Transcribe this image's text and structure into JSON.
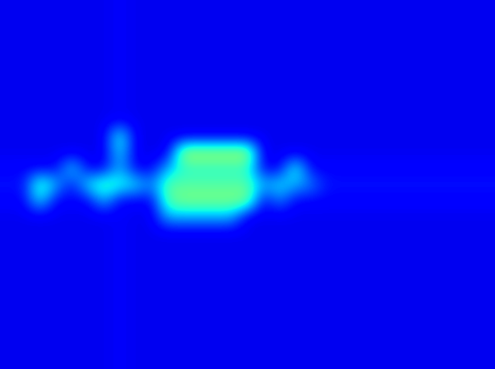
{
  "chart_data": {
    "type": "heatmap",
    "tick_labels": false,
    "color_range": [
      0,
      1
    ],
    "cells": [
      [
        0.1,
        0.1,
        0.1,
        0.1,
        0.1,
        0.1,
        0.1,
        0.11,
        0.1,
        0.1,
        0.1,
        0.1,
        0.1,
        0.1,
        0.1,
        0.1,
        0.1,
        0.1,
        0.1,
        0.1,
        0.1,
        0.1,
        0.1,
        0.1,
        0.1,
        0.1,
        0.1,
        0.1,
        0.1,
        0.1,
        0.1
      ],
      [
        0.1,
        0.1,
        0.1,
        0.1,
        0.1,
        0.1,
        0.1,
        0.11,
        0.1,
        0.1,
        0.1,
        0.1,
        0.1,
        0.1,
        0.1,
        0.1,
        0.1,
        0.1,
        0.1,
        0.1,
        0.1,
        0.1,
        0.1,
        0.1,
        0.1,
        0.1,
        0.1,
        0.1,
        0.1,
        0.1,
        0.1
      ],
      [
        0.1,
        0.1,
        0.1,
        0.1,
        0.1,
        0.1,
        0.1,
        0.11,
        0.1,
        0.1,
        0.1,
        0.1,
        0.1,
        0.1,
        0.1,
        0.1,
        0.1,
        0.1,
        0.1,
        0.1,
        0.1,
        0.1,
        0.1,
        0.1,
        0.1,
        0.1,
        0.1,
        0.1,
        0.1,
        0.1,
        0.1
      ],
      [
        0.1,
        0.1,
        0.1,
        0.1,
        0.1,
        0.1,
        0.1,
        0.11,
        0.1,
        0.1,
        0.1,
        0.1,
        0.1,
        0.1,
        0.1,
        0.1,
        0.1,
        0.1,
        0.1,
        0.1,
        0.1,
        0.1,
        0.1,
        0.1,
        0.1,
        0.1,
        0.1,
        0.1,
        0.1,
        0.1,
        0.1
      ],
      [
        0.1,
        0.1,
        0.1,
        0.1,
        0.1,
        0.1,
        0.1,
        0.11,
        0.1,
        0.1,
        0.1,
        0.1,
        0.1,
        0.1,
        0.1,
        0.1,
        0.1,
        0.1,
        0.1,
        0.1,
        0.1,
        0.1,
        0.1,
        0.1,
        0.1,
        0.1,
        0.1,
        0.1,
        0.1,
        0.1,
        0.1
      ],
      [
        0.1,
        0.1,
        0.1,
        0.1,
        0.1,
        0.1,
        0.1,
        0.11,
        0.1,
        0.1,
        0.1,
        0.1,
        0.1,
        0.1,
        0.1,
        0.1,
        0.1,
        0.1,
        0.1,
        0.1,
        0.1,
        0.1,
        0.1,
        0.1,
        0.1,
        0.1,
        0.1,
        0.1,
        0.1,
        0.1,
        0.1
      ],
      [
        0.1,
        0.1,
        0.1,
        0.1,
        0.1,
        0.1,
        0.1,
        0.11,
        0.1,
        0.1,
        0.1,
        0.1,
        0.1,
        0.1,
        0.1,
        0.1,
        0.1,
        0.1,
        0.1,
        0.1,
        0.1,
        0.1,
        0.1,
        0.1,
        0.1,
        0.1,
        0.1,
        0.1,
        0.1,
        0.1,
        0.1
      ],
      [
        0.1,
        0.1,
        0.1,
        0.1,
        0.1,
        0.1,
        0.1,
        0.11,
        0.1,
        0.1,
        0.1,
        0.1,
        0.1,
        0.1,
        0.1,
        0.1,
        0.1,
        0.1,
        0.1,
        0.1,
        0.1,
        0.1,
        0.1,
        0.1,
        0.1,
        0.1,
        0.1,
        0.1,
        0.1,
        0.1,
        0.1
      ],
      [
        0.1,
        0.1,
        0.1,
        0.1,
        0.1,
        0.1,
        0.1,
        0.4,
        0.1,
        0.1,
        0.1,
        0.1,
        0.1,
        0.1,
        0.1,
        0.1,
        0.1,
        0.1,
        0.1,
        0.1,
        0.1,
        0.1,
        0.1,
        0.1,
        0.1,
        0.1,
        0.1,
        0.1,
        0.1,
        0.1,
        0.1
      ],
      [
        0.1,
        0.1,
        0.1,
        0.1,
        0.1,
        0.1,
        0.1,
        0.35,
        0.1,
        0.1,
        0.1,
        0.55,
        0.55,
        0.55,
        0.55,
        0.55,
        0.1,
        0.1,
        0.1,
        0.1,
        0.1,
        0.1,
        0.1,
        0.1,
        0.1,
        0.1,
        0.1,
        0.1,
        0.1,
        0.1,
        0.1
      ],
      [
        0.12,
        0.12,
        0.12,
        0.12,
        0.35,
        0.12,
        0.12,
        0.3,
        0.12,
        0.12,
        0.3,
        0.4,
        0.4,
        0.4,
        0.4,
        0.4,
        0.12,
        0.12,
        0.4,
        0.12,
        0.12,
        0.12,
        0.12,
        0.12,
        0.12,
        0.12,
        0.12,
        0.12,
        0.12,
        0.12,
        0.12
      ],
      [
        0.14,
        0.14,
        0.45,
        0.3,
        0.14,
        0.35,
        0.45,
        0.4,
        0.35,
        0.25,
        0.45,
        0.45,
        0.45,
        0.45,
        0.45,
        0.45,
        0.3,
        0.35,
        0.3,
        0.25,
        0.14,
        0.14,
        0.14,
        0.14,
        0.14,
        0.14,
        0.14,
        0.14,
        0.14,
        0.14,
        0.14
      ],
      [
        0.12,
        0.12,
        0.35,
        0.12,
        0.12,
        0.12,
        0.3,
        0.12,
        0.12,
        0.12,
        0.45,
        0.5,
        0.5,
        0.5,
        0.5,
        0.5,
        0.12,
        0.25,
        0.12,
        0.12,
        0.12,
        0.12,
        0.12,
        0.12,
        0.12,
        0.12,
        0.12,
        0.12,
        0.12,
        0.12,
        0.12
      ],
      [
        0.1,
        0.1,
        0.1,
        0.1,
        0.1,
        0.1,
        0.1,
        0.11,
        0.1,
        0.1,
        0.3,
        0.3,
        0.3,
        0.3,
        0.3,
        0.1,
        0.1,
        0.1,
        0.1,
        0.1,
        0.1,
        0.1,
        0.1,
        0.1,
        0.1,
        0.1,
        0.1,
        0.1,
        0.1,
        0.1,
        0.1
      ],
      [
        0.1,
        0.1,
        0.1,
        0.1,
        0.1,
        0.1,
        0.1,
        0.11,
        0.1,
        0.1,
        0.1,
        0.1,
        0.1,
        0.1,
        0.1,
        0.1,
        0.1,
        0.1,
        0.1,
        0.1,
        0.1,
        0.1,
        0.1,
        0.1,
        0.1,
        0.1,
        0.1,
        0.1,
        0.1,
        0.1,
        0.1
      ],
      [
        0.1,
        0.1,
        0.1,
        0.1,
        0.1,
        0.1,
        0.1,
        0.11,
        0.1,
        0.1,
        0.1,
        0.1,
        0.1,
        0.1,
        0.1,
        0.1,
        0.1,
        0.1,
        0.1,
        0.1,
        0.1,
        0.1,
        0.1,
        0.1,
        0.1,
        0.1,
        0.1,
        0.1,
        0.1,
        0.1,
        0.1
      ],
      [
        0.1,
        0.1,
        0.1,
        0.1,
        0.1,
        0.1,
        0.1,
        0.11,
        0.1,
        0.1,
        0.1,
        0.1,
        0.1,
        0.1,
        0.1,
        0.1,
        0.1,
        0.1,
        0.1,
        0.1,
        0.1,
        0.1,
        0.1,
        0.1,
        0.1,
        0.1,
        0.1,
        0.1,
        0.1,
        0.1,
        0.1
      ],
      [
        0.1,
        0.1,
        0.1,
        0.1,
        0.1,
        0.1,
        0.1,
        0.11,
        0.1,
        0.1,
        0.1,
        0.1,
        0.1,
        0.1,
        0.1,
        0.1,
        0.1,
        0.1,
        0.1,
        0.1,
        0.1,
        0.1,
        0.1,
        0.1,
        0.1,
        0.1,
        0.1,
        0.1,
        0.1,
        0.1,
        0.1
      ],
      [
        0.1,
        0.1,
        0.1,
        0.1,
        0.1,
        0.1,
        0.1,
        0.11,
        0.1,
        0.1,
        0.1,
        0.1,
        0.1,
        0.1,
        0.1,
        0.1,
        0.1,
        0.1,
        0.1,
        0.1,
        0.1,
        0.1,
        0.1,
        0.1,
        0.1,
        0.1,
        0.1,
        0.1,
        0.1,
        0.1,
        0.1
      ],
      [
        0.1,
        0.1,
        0.1,
        0.1,
        0.1,
        0.1,
        0.1,
        0.11,
        0.1,
        0.1,
        0.1,
        0.1,
        0.1,
        0.1,
        0.1,
        0.1,
        0.1,
        0.1,
        0.1,
        0.1,
        0.1,
        0.1,
        0.1,
        0.1,
        0.1,
        0.1,
        0.1,
        0.1,
        0.1,
        0.1,
        0.1
      ],
      [
        0.1,
        0.1,
        0.1,
        0.1,
        0.1,
        0.1,
        0.1,
        0.11,
        0.1,
        0.1,
        0.1,
        0.1,
        0.1,
        0.1,
        0.1,
        0.1,
        0.1,
        0.1,
        0.1,
        0.1,
        0.1,
        0.1,
        0.1,
        0.1,
        0.1,
        0.1,
        0.1,
        0.1,
        0.1,
        0.1,
        0.1
      ],
      [
        0.1,
        0.1,
        0.1,
        0.1,
        0.1,
        0.1,
        0.1,
        0.11,
        0.1,
        0.1,
        0.1,
        0.1,
        0.1,
        0.1,
        0.1,
        0.1,
        0.1,
        0.1,
        0.1,
        0.1,
        0.1,
        0.1,
        0.1,
        0.1,
        0.1,
        0.1,
        0.1,
        0.1,
        0.1,
        0.1,
        0.1
      ],
      [
        0.1,
        0.1,
        0.1,
        0.1,
        0.1,
        0.1,
        0.1,
        0.11,
        0.1,
        0.1,
        0.1,
        0.1,
        0.1,
        0.1,
        0.1,
        0.1,
        0.1,
        0.1,
        0.1,
        0.1,
        0.1,
        0.1,
        0.1,
        0.1,
        0.1,
        0.1,
        0.1,
        0.1,
        0.1,
        0.1,
        0.1
      ]
    ]
  }
}
